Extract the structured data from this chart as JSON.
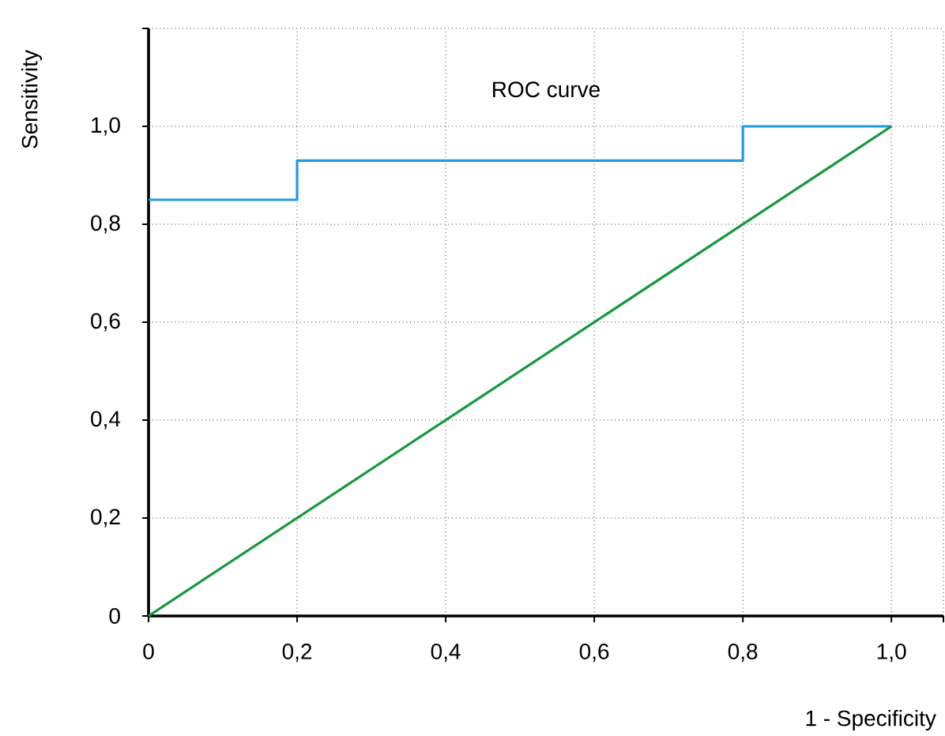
{
  "chart_data": {
    "type": "line",
    "title": "ROC curve",
    "xlabel": "1 - Specificity",
    "ylabel": "Sensitivity",
    "xlim": [
      0,
      1.07
    ],
    "ylim": [
      0,
      1.2
    ],
    "xticks": [
      {
        "value": 0,
        "label": "0"
      },
      {
        "value": 0.2,
        "label": "0,2"
      },
      {
        "value": 0.4,
        "label": "0,4"
      },
      {
        "value": 0.6,
        "label": "0,6"
      },
      {
        "value": 0.8,
        "label": "0,8"
      },
      {
        "value": 1.0,
        "label": "1,0"
      },
      {
        "value": 1.07,
        "label": null
      }
    ],
    "yticks": [
      {
        "value": 0,
        "label": "0"
      },
      {
        "value": 0.2,
        "label": "0,2"
      },
      {
        "value": 0.4,
        "label": "0,4"
      },
      {
        "value": 0.6,
        "label": "0,6"
      },
      {
        "value": 0.8,
        "label": "0,8"
      },
      {
        "value": 1.0,
        "label": "1,0"
      },
      {
        "value": 1.2,
        "label": null
      }
    ],
    "grid": true,
    "legend": false,
    "marker": "none",
    "line_style": "solid",
    "series": [
      {
        "type": "step",
        "color": "#1e9be0",
        "x": [
          0,
          0.2,
          0.8,
          1.0
        ],
        "values": [
          0.85,
          0.93,
          1.0,
          1.0
        ]
      },
      {
        "color": "#14983c",
        "x": [
          0,
          1.0
        ],
        "values": [
          0,
          1.0
        ]
      }
    ]
  }
}
